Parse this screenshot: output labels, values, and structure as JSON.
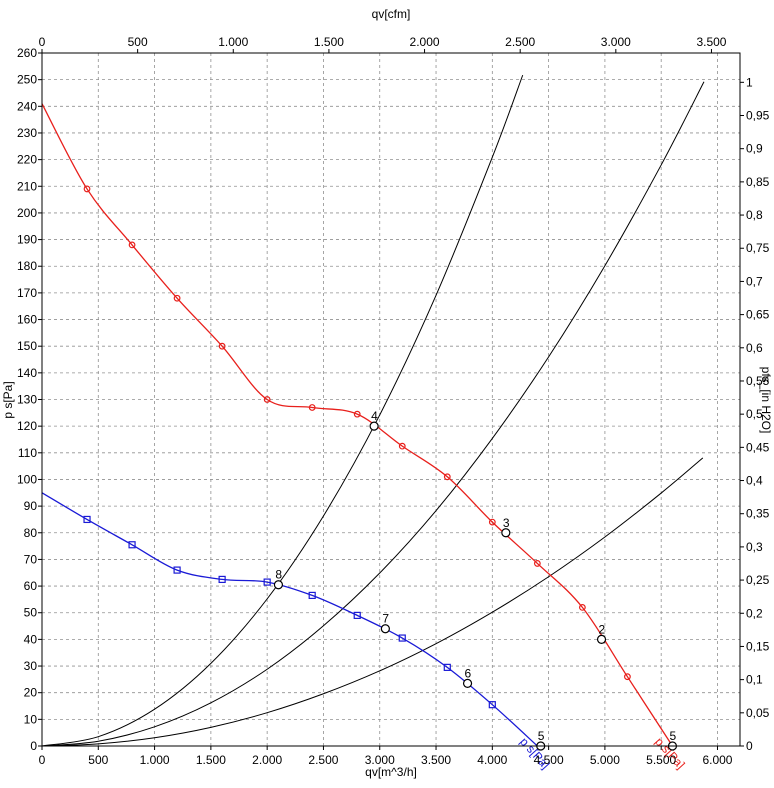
{
  "chart_data": {
    "type": "line",
    "xlabel_bottom": "qv[m^3/h]",
    "xlabel_top": "qv[cfm]",
    "ylabel_left": "p s[Pa]",
    "ylabel_right": "pfs_[in H2O]",
    "xlim": [
      0,
      6200
    ],
    "ylim": [
      0,
      260
    ],
    "grid": true,
    "bottom_ticks": [
      0,
      500,
      1000,
      1500,
      2000,
      2500,
      3000,
      3500,
      4000,
      4500,
      5000,
      5500,
      6000
    ],
    "bottom_tick_labels": [
      "0",
      "500",
      "1.000",
      "1.500",
      "2.000",
      "2.500",
      "3.000",
      "3.500",
      "4.000",
      "4.500",
      "5.000",
      "5.500",
      "6.000"
    ],
    "top_ticks": [
      0,
      500,
      1000,
      1500,
      2000,
      2500,
      3000,
      3500
    ],
    "top_tick_labels": [
      "0",
      "500",
      "1.000",
      "1.500",
      "2.000",
      "2.500",
      "3.000",
      "3.500"
    ],
    "left_ticks": [
      0,
      10,
      20,
      30,
      40,
      50,
      60,
      70,
      80,
      90,
      100,
      110,
      120,
      130,
      140,
      150,
      160,
      170,
      180,
      190,
      200,
      210,
      220,
      230,
      240,
      250,
      260
    ],
    "right_ticks": [
      0,
      0.05,
      0.1,
      0.15,
      0.2,
      0.25,
      0.3,
      0.35,
      0.4,
      0.45,
      0.5,
      0.55,
      0.6,
      0.65,
      0.7,
      0.75,
      0.8,
      0.85,
      0.9,
      0.95,
      1
    ],
    "right_tick_labels": [
      "0",
      "0,05",
      "0,1",
      "0,15",
      "0,2",
      "0,25",
      "0,3",
      "0,35",
      "0,4",
      "0,45",
      "0,5",
      "0,55",
      "0,6",
      "0,65",
      "0,7",
      "0,75",
      "0,8",
      "0,85",
      "0,9",
      "0,95",
      "1"
    ],
    "series": [
      {
        "name": "p s[Pa]",
        "color": "#e8201c",
        "marker": "circle",
        "x": [
          0,
          400,
          800,
          1200,
          1600,
          2000,
          2400,
          2800,
          3200,
          3600,
          4000,
          4400,
          4800,
          5200,
          5600
        ],
        "y": [
          241,
          209,
          188,
          168,
          150,
          130,
          127,
          124.5,
          112.5,
          101,
          84,
          68.5,
          52,
          26,
          0
        ]
      },
      {
        "name": "p s[Pa]",
        "color": "#1a1ad6",
        "marker": "square",
        "x": [
          0,
          400,
          800,
          1200,
          1600,
          2000,
          2400,
          2800,
          3200,
          3600,
          4000,
          4400
        ],
        "y": [
          95,
          85,
          75.5,
          66,
          62.5,
          61.5,
          56.5,
          49,
          40.5,
          29.5,
          15.5,
          0
        ]
      }
    ],
    "system_curves": [
      {
        "x": [
          0,
          500,
          1000,
          1500,
          2000,
          2500,
          3000,
          3500,
          4000,
          4270
        ],
        "y": [
          0,
          3.5,
          13.8,
          31,
          55.2,
          86.3,
          124.2,
          169.1,
          220.9,
          251.7
        ]
      },
      {
        "x": [
          0,
          500,
          1000,
          1500,
          2000,
          2500,
          3000,
          3500,
          4000,
          4500,
          5000,
          5500,
          5880
        ],
        "y": [
          0,
          1.8,
          7.2,
          16.2,
          28.8,
          45.1,
          64.9,
          88.3,
          115.4,
          146,
          180.2,
          218,
          249.2
        ]
      },
      {
        "x": [
          0,
          500,
          1000,
          1500,
          2000,
          2500,
          3000,
          3500,
          4000,
          4500,
          5000,
          5500,
          5870
        ],
        "y": [
          0,
          0.8,
          3.1,
          7,
          12.5,
          19.6,
          28.2,
          38.4,
          50.2,
          63.5,
          78.4,
          94.9,
          108.1
        ]
      }
    ],
    "points": [
      {
        "label": "2",
        "x": 4970,
        "y": 40
      },
      {
        "label": "3",
        "x": 4120,
        "y": 80
      },
      {
        "label": "4",
        "x": 2950,
        "y": 120
      },
      {
        "label": "5",
        "x": 5600,
        "y": 0
      },
      {
        "label": "6",
        "x": 3780,
        "y": 23.5
      },
      {
        "label": "7",
        "x": 3050,
        "y": 44
      },
      {
        "label": "8",
        "x": 2100,
        "y": 60.5
      },
      {
        "label": "5",
        "x": 4430,
        "y": 0
      }
    ]
  }
}
